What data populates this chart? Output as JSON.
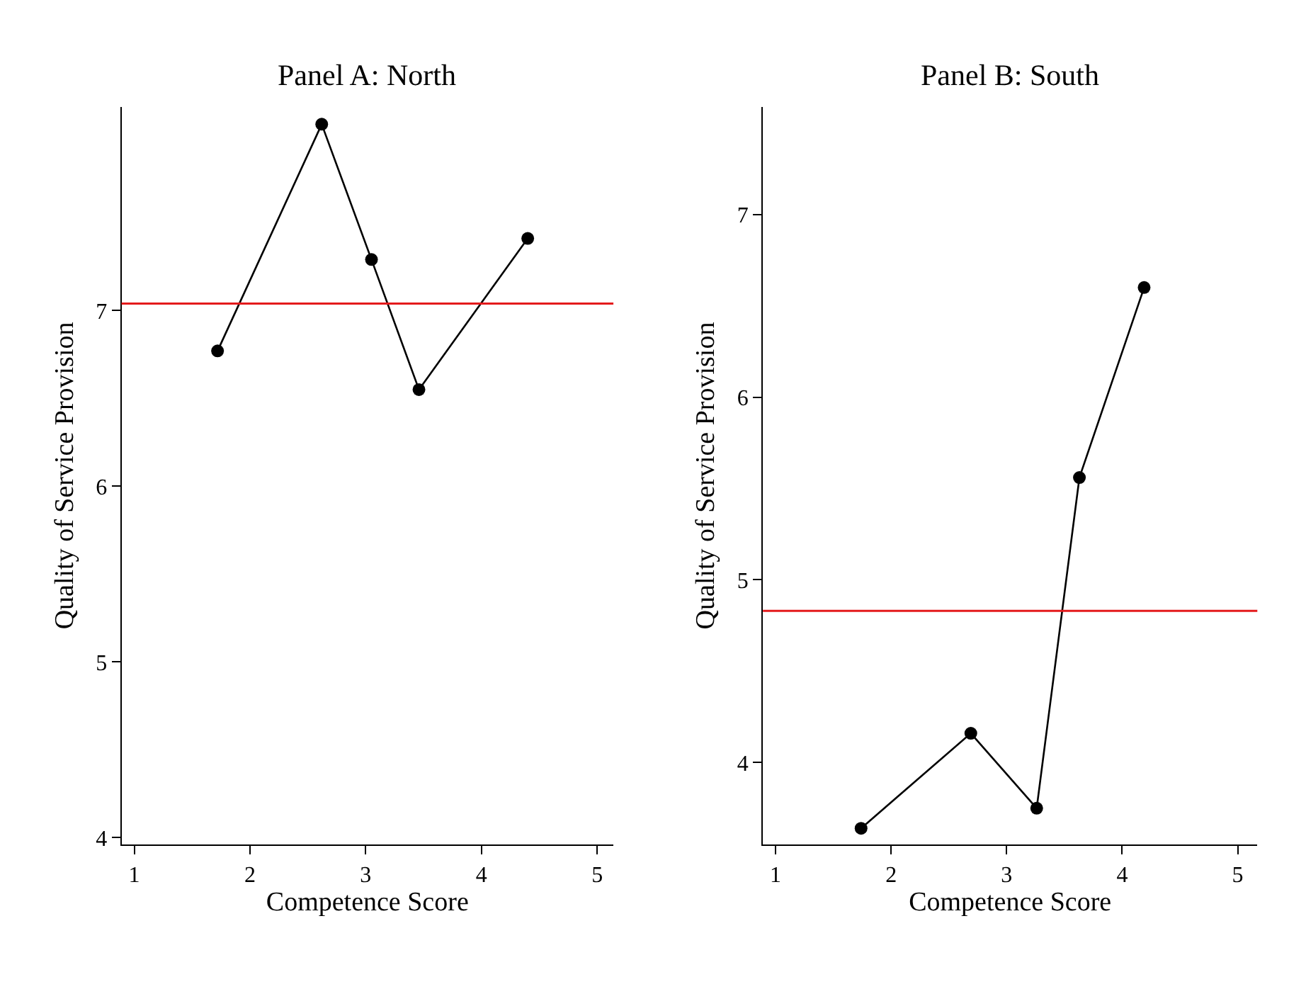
{
  "chart_data": [
    {
      "type": "line",
      "title": "Panel A: North",
      "xlabel": "Competence Score",
      "ylabel": "Quality of Service Provision",
      "marker": "circle",
      "line_style": "solid",
      "series": [
        {
          "color": "#000000",
          "x": [
            1.72,
            2.62,
            3.05,
            3.46,
            4.4
          ],
          "values": [
            6.77,
            8.06,
            7.29,
            6.55,
            7.41
          ]
        }
      ],
      "ref_lines": [
        {
          "axis": "y",
          "value": 7.04,
          "color": "#e41a1c"
        }
      ],
      "xlim": [
        0.89,
        5.14
      ],
      "xticks": [
        1,
        2,
        3,
        4,
        5
      ],
      "ylim": [
        3.96,
        8.16
      ],
      "yticks": [
        4,
        5,
        6,
        7
      ]
    },
    {
      "type": "line",
      "title": "Panel B: South",
      "xlabel": "Competence Score",
      "ylabel": "Quality of Service Provision",
      "marker": "circle",
      "line_style": "solid",
      "series": [
        {
          "color": "#000000",
          "x": [
            1.74,
            2.69,
            3.26,
            3.63,
            4.19
          ],
          "values": [
            3.64,
            4.16,
            3.75,
            5.56,
            6.6
          ]
        }
      ],
      "ref_lines": [
        {
          "axis": "y",
          "value": 4.83,
          "color": "#e41a1c"
        }
      ],
      "xlim": [
        0.89,
        5.17
      ],
      "xticks": [
        1,
        2,
        3,
        4,
        5
      ],
      "ylim": [
        3.55,
        7.59
      ],
      "yticks": [
        4,
        5,
        6,
        7
      ]
    }
  ]
}
